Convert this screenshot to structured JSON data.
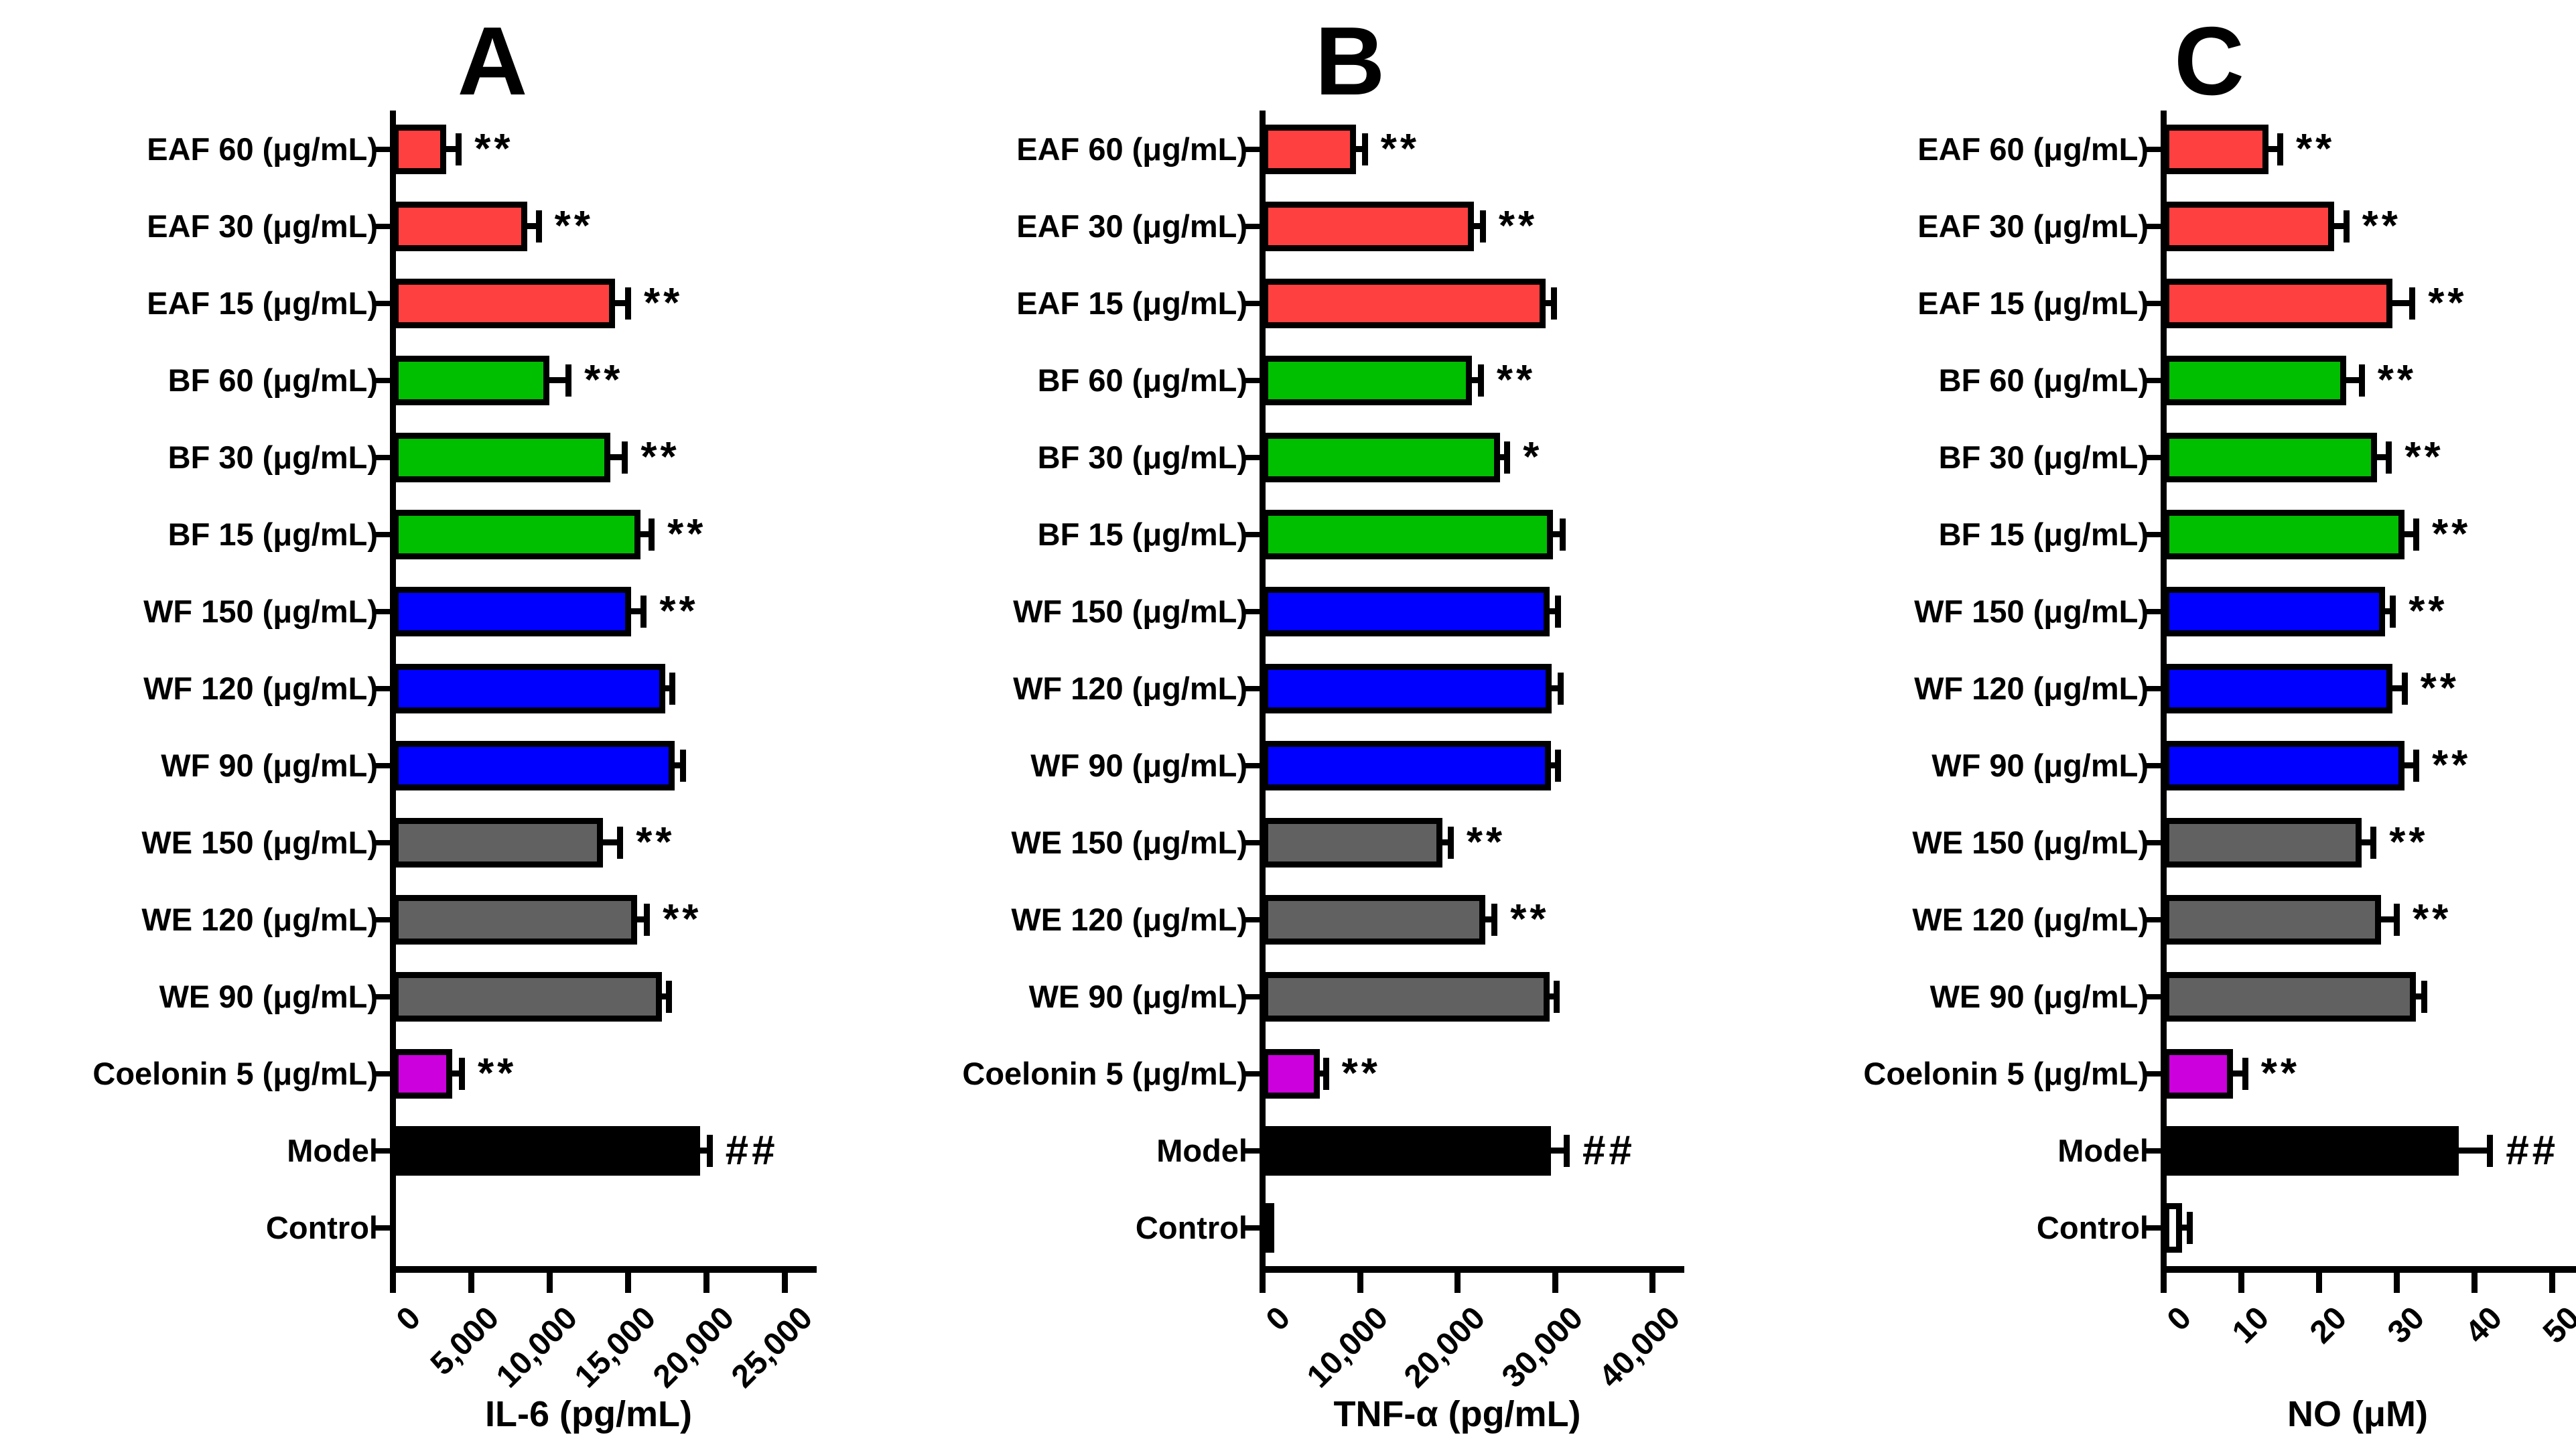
{
  "figure": {
    "panel_titles": [
      "A",
      "B",
      "C"
    ],
    "significance_symbols_shown": [
      "*",
      "**",
      "##"
    ],
    "bar_border_color": "#000000",
    "group_colors": {
      "EAF": "#FF4040",
      "BF": "#00BE00",
      "WF": "#0000FF",
      "WE": "#616161",
      "Coelonin": "#CC00DD",
      "Model": "#000000",
      "Control": "#FFFFFF"
    }
  },
  "chart_data": [
    {
      "type": "bar",
      "orientation": "horizontal",
      "panel": "A",
      "title": "A",
      "xlabel": "IL-6 (pg/mL)",
      "xlim": [
        0,
        25000
      ],
      "xticks": [
        0,
        5000,
        10000,
        15000,
        20000,
        25000
      ],
      "xtick_labels": [
        "0",
        "5,000",
        "10,000",
        "15,000",
        "20,000",
        "25,000"
      ],
      "categories_top_to_bottom": [
        "EAF 60 (μg/mL)",
        "EAF 30 (μg/mL)",
        "EAF 15 (μg/mL)",
        "BF 60 (μg/mL)",
        "BF 30 (μg/mL)",
        "BF 15 (μg/mL)",
        "WF 150 (μg/mL)",
        "WF 120 (μg/mL)",
        "WF 90 (μg/mL)",
        "WE 150 (μg/mL)",
        "WE 120 (μg/mL)",
        "WE 90 (μg/mL)",
        "Coelonin 5 (μg/mL)",
        "Model",
        "Control"
      ],
      "values": [
        3400,
        8600,
        14200,
        10000,
        13900,
        15800,
        15200,
        17400,
        18000,
        13400,
        15600,
        17200,
        3800,
        19600,
        0
      ],
      "errors": [
        800,
        700,
        800,
        1200,
        900,
        700,
        800,
        400,
        500,
        1100,
        600,
        400,
        600,
        600,
        0
      ],
      "significance": [
        "**",
        "**",
        "**",
        "**",
        "**",
        "**",
        "**",
        "",
        "",
        "**",
        "**",
        "",
        "**",
        "##",
        ""
      ],
      "bar_colors": [
        "#FF4040",
        "#FF4040",
        "#FF4040",
        "#00BE00",
        "#00BE00",
        "#00BE00",
        "#0000FF",
        "#0000FF",
        "#0000FF",
        "#616161",
        "#616161",
        "#616161",
        "#CC00DD",
        "#000000",
        "#FFFFFF"
      ],
      "bar_patterns": [
        "",
        "",
        "",
        "",
        "",
        "",
        "",
        "",
        "",
        "",
        "",
        "",
        "",
        "",
        ""
      ],
      "grid": false,
      "legend": false
    },
    {
      "type": "bar",
      "orientation": "horizontal",
      "panel": "B",
      "title": "B",
      "xlabel": "TNF-α (pg/mL)",
      "xlim": [
        0,
        40000
      ],
      "xticks": [
        0,
        10000,
        20000,
        30000,
        40000
      ],
      "xtick_labels": [
        "0",
        "10,000",
        "20,000",
        "30,000",
        "40,000"
      ],
      "categories_top_to_bottom": [
        "EAF 60 (μg/mL)",
        "EAF 30 (μg/mL)",
        "EAF 15 (μg/mL)",
        "BF 60 (μg/mL)",
        "BF 30 (μg/mL)",
        "BF 15 (μg/mL)",
        "WF 150 (μg/mL)",
        "WF 120 (μg/mL)",
        "WF 90 (μg/mL)",
        "WE 150 (μg/mL)",
        "WE 120 (μg/mL)",
        "WE 90 (μg/mL)",
        "Coelonin 5 (μg/mL)",
        "Model",
        "Control"
      ],
      "values": [
        9600,
        21700,
        29100,
        21500,
        24400,
        29800,
        29500,
        29700,
        29600,
        18500,
        22900,
        29500,
        5900,
        29600,
        600
      ],
      "errors": [
        900,
        900,
        800,
        900,
        700,
        1000,
        800,
        900,
        700,
        800,
        900,
        700,
        600,
        1600,
        300
      ],
      "significance": [
        "**",
        "**",
        "",
        "**",
        "*",
        "",
        "",
        "",
        "",
        "**",
        "**",
        "",
        "**",
        "##",
        ""
      ],
      "bar_colors": [
        "#FF4040",
        "#FF4040",
        "#FF4040",
        "#00BE00",
        "#00BE00",
        "#00BE00",
        "#0000FF",
        "#0000FF",
        "#0000FF",
        "#616161",
        "#616161",
        "#616161",
        "#CC00DD",
        "#000000",
        "#FFFFFF"
      ],
      "bar_patterns": [
        "",
        "",
        "",
        "",
        "",
        "",
        "",
        "",
        "",
        "",
        "",
        "",
        "",
        "",
        ""
      ],
      "grid": false,
      "legend": false
    },
    {
      "type": "bar",
      "orientation": "horizontal",
      "panel": "C",
      "title": "C",
      "xlabel": "NO (μM)",
      "xlim": [
        0,
        50
      ],
      "xticks": [
        0,
        10,
        20,
        30,
        40,
        50
      ],
      "xtick_labels": [
        "0",
        "10",
        "20",
        "30",
        "40",
        "50"
      ],
      "categories_top_to_bottom": [
        "EAF 60 (μg/mL)",
        "EAF 30 (μg/mL)",
        "EAF 15 (μg/mL)",
        "BF 60 (μg/mL)",
        "BF 30 (μg/mL)",
        "BF 15 (μg/mL)",
        "WF 150 (μg/mL)",
        "WF 120 (μg/mL)",
        "WF 90 (μg/mL)",
        "WE 150 (μg/mL)",
        "WE 120 (μg/mL)",
        "WE 90 (μg/mL)",
        "Coelonin 5 (μg/mL)",
        "Model",
        "Control"
      ],
      "values": [
        13.5,
        22,
        29.5,
        23.5,
        27.5,
        31,
        28.5,
        29.5,
        31,
        25.5,
        28,
        32.5,
        9,
        38,
        2.4
      ],
      "errors": [
        1.5,
        1.5,
        2.5,
        2,
        1.5,
        1.5,
        1,
        1.5,
        1.5,
        1.5,
        2,
        1,
        1.5,
        4,
        1
      ],
      "significance": [
        "**",
        "**",
        "**",
        "**",
        "**",
        "**",
        "**",
        "**",
        "**",
        "**",
        "**",
        "",
        "**",
        "##",
        ""
      ],
      "bar_colors": [
        "#FF4040",
        "#FF4040",
        "#FF4040",
        "#00BE00",
        "#00BE00",
        "#00BE00",
        "#0000FF",
        "#0000FF",
        "#0000FF",
        "#616161",
        "#616161",
        "#616161",
        "#CC00DD",
        "#000000",
        "#FFFFFF"
      ],
      "bar_patterns": [
        "",
        "",
        "",
        "",
        "",
        "",
        "",
        "",
        "",
        "",
        "",
        "",
        "",
        "",
        "dots"
      ],
      "grid": false,
      "legend": false
    }
  ]
}
